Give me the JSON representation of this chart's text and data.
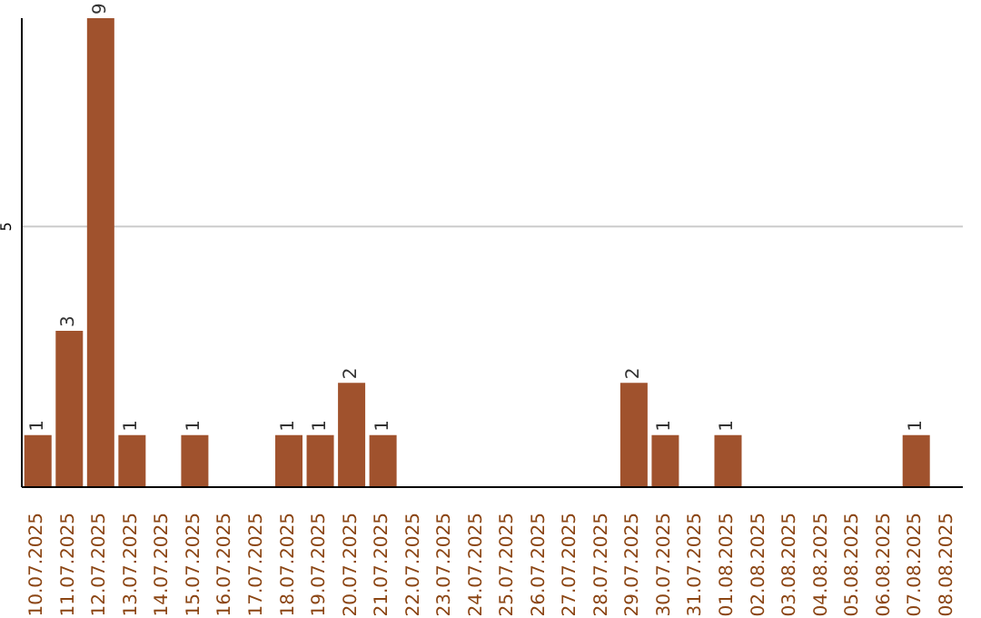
{
  "chart_data": {
    "type": "bar",
    "categories": [
      "10.07.2025",
      "11.07.2025",
      "12.07.2025",
      "13.07.2025",
      "14.07.2025",
      "15.07.2025",
      "16.07.2025",
      "17.07.2025",
      "18.07.2025",
      "19.07.2025",
      "20.07.2025",
      "21.07.2025",
      "22.07.2025",
      "23.07.2025",
      "24.07.2025",
      "25.07.2025",
      "26.07.2025",
      "27.07.2025",
      "28.07.2025",
      "29.07.2025",
      "30.07.2025",
      "31.07.2025",
      "01.08.2025",
      "02.08.2025",
      "03.08.2025",
      "04.08.2025",
      "05.08.2025",
      "06.08.2025",
      "07.08.2025",
      "08.08.2025"
    ],
    "values": [
      1,
      3,
      9,
      1,
      0,
      1,
      0,
      0,
      1,
      1,
      2,
      1,
      0,
      0,
      0,
      0,
      0,
      0,
      0,
      2,
      1,
      0,
      1,
      0,
      0,
      0,
      0,
      0,
      1,
      0
    ],
    "value_labels": [
      "1",
      "3",
      "9",
      "1",
      null,
      "1",
      null,
      null,
      "1",
      "1",
      "2",
      "1",
      null,
      null,
      null,
      null,
      null,
      null,
      null,
      "2",
      "1",
      null,
      "1",
      null,
      null,
      null,
      null,
      null,
      "1",
      null
    ],
    "color": "#a0522d",
    "ylim": [
      0,
      9
    ],
    "yticks": [
      5
    ],
    "grid": "y"
  }
}
